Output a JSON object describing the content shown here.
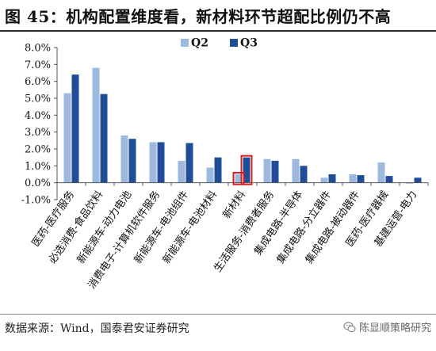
{
  "title": "图 45：机构配置维度看，新材料环节超配比例仍不高",
  "source": "数据来源：Wind，国泰君安证券研究",
  "watermark": "陈显顺策略研究",
  "colors": {
    "q2": "#9db9e0",
    "q3": "#1f4e96",
    "highlight": "#d62020",
    "axis": "#555555"
  },
  "chart_data": {
    "type": "bar",
    "categories": [
      "医药-医疗服务",
      "必选消费-食品饮料",
      "新能源车-动力电池",
      "消费电子-计算机软件服务",
      "新能源车-电池组件",
      "新能源车-电池材料",
      "新材料",
      "生活服务-消费者服务",
      "集成电路-半导体",
      "集成电路-分立器件",
      "集成电路-被动器件",
      "医药-医疗器械",
      "基建运营-电力"
    ],
    "series": [
      {
        "name": "Q2",
        "values": [
          5.3,
          6.8,
          2.8,
          2.4,
          1.3,
          0.9,
          0.5,
          1.4,
          1.4,
          0.3,
          0.5,
          1.2,
          -0.05
        ]
      },
      {
        "name": "Q3",
        "values": [
          6.4,
          5.25,
          2.6,
          2.4,
          2.35,
          1.5,
          1.5,
          1.3,
          1.0,
          0.5,
          0.45,
          0.4,
          0.3
        ]
      }
    ],
    "ylim": [
      -1.0,
      8.0
    ],
    "yticks": [
      "-1.0%",
      "0.0%",
      "1.0%",
      "2.0%",
      "3.0%",
      "4.0%",
      "5.0%",
      "6.0%",
      "7.0%",
      "8.0%"
    ],
    "highlight_category_index": 6,
    "legend_position": "top-center",
    "grid": false
  }
}
